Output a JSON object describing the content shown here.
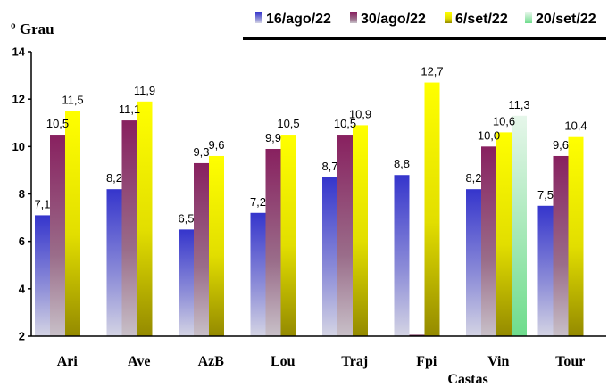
{
  "chart_data": {
    "type": "bar",
    "ylabel": "º Grau",
    "xlabel": "Castas",
    "ylim": [
      2,
      14
    ],
    "yticks": [
      2,
      4,
      6,
      8,
      10,
      12,
      14
    ],
    "grid": false,
    "legend_position": "top-right",
    "categories": [
      "Ari",
      "Ave",
      "AzB",
      "Lou",
      "Traj",
      "Fpi",
      "Vin",
      "Tour"
    ],
    "series": [
      {
        "name": "16/ago/22",
        "color": "#3f3fd0",
        "values": [
          7.1,
          8.2,
          6.5,
          7.2,
          8.7,
          8.8,
          8.2,
          7.5
        ],
        "labels": [
          "7,1",
          "8,2",
          "6,5",
          "7,2",
          "8,7",
          "8,8",
          "8,2",
          "7,5"
        ]
      },
      {
        "name": "30/ago/22",
        "color": "#8e2f68",
        "values": [
          10.5,
          11.1,
          9.3,
          9.9,
          10.5,
          null,
          10.0,
          9.6
        ],
        "labels": [
          "10,5",
          "11,1",
          "9,3",
          "9,9",
          "10,5",
          "",
          "10,0",
          "9,6"
        ]
      },
      {
        "name": "6/set/22",
        "color": "#f5f500",
        "values": [
          11.5,
          11.9,
          9.6,
          10.5,
          10.9,
          12.7,
          10.6,
          10.4
        ],
        "labels": [
          "11,5",
          "11,9",
          "9,6",
          "10,5",
          "10,9",
          "12,7",
          "10,6",
          "10,4"
        ]
      },
      {
        "name": "20/set/22",
        "color": "#7edc9a",
        "values": [
          null,
          null,
          null,
          null,
          null,
          null,
          11.3,
          null
        ],
        "labels": [
          "",
          "",
          "",
          "",
          "",
          "",
          "11,3",
          ""
        ]
      }
    ]
  }
}
